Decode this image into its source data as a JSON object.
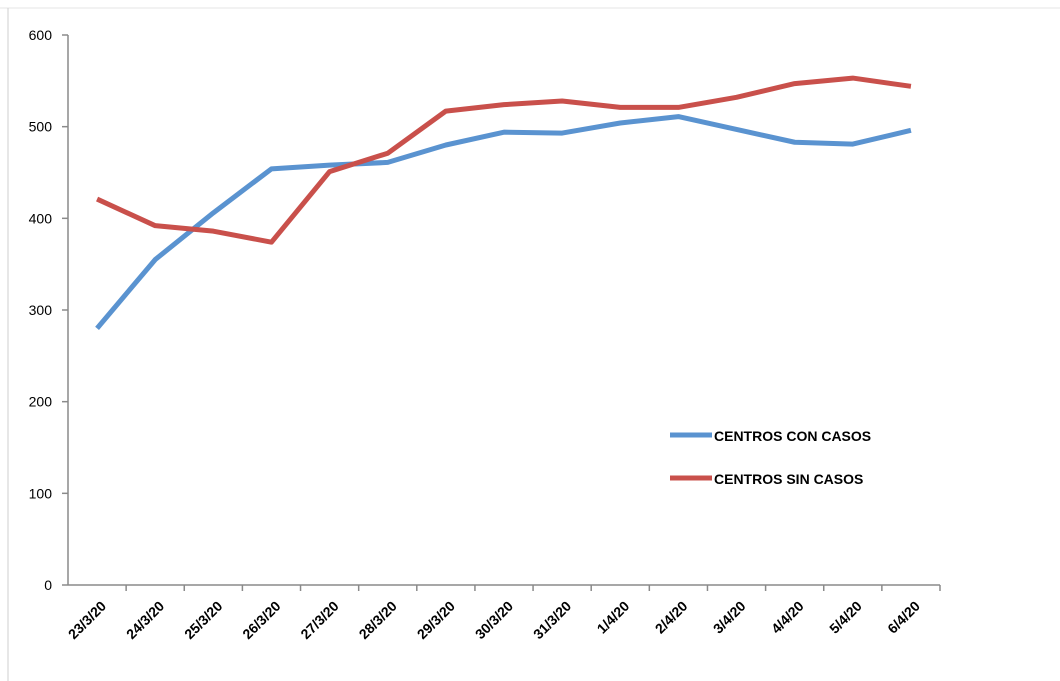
{
  "chart_data": {
    "type": "line",
    "categories": [
      "23/3/20",
      "24/3/20",
      "25/3/20",
      "26/3/20",
      "27/3/20",
      "28/3/20",
      "29/3/20",
      "30/3/20",
      "31/3/20",
      "1/4/20",
      "2/4/20",
      "3/4/20",
      "4/4/20",
      "5/4/20",
      "6/4/20"
    ],
    "series": [
      {
        "name": "CENTROS CON CASOS",
        "color": "#5a93d0",
        "values": [
          280,
          355,
          406,
          454,
          458,
          461,
          480,
          494,
          493,
          504,
          511,
          497,
          483,
          481,
          496
        ]
      },
      {
        "name": "CENTROS SIN CASOS",
        "color": "#c9504b",
        "values": [
          421,
          392,
          386,
          374,
          451,
          471,
          517,
          524,
          528,
          521,
          521,
          532,
          547,
          553,
          544
        ]
      }
    ],
    "ylim": [
      0,
      600
    ],
    "yticks": [
      0,
      100,
      200,
      300,
      400,
      500,
      600
    ],
    "grid": false
  }
}
